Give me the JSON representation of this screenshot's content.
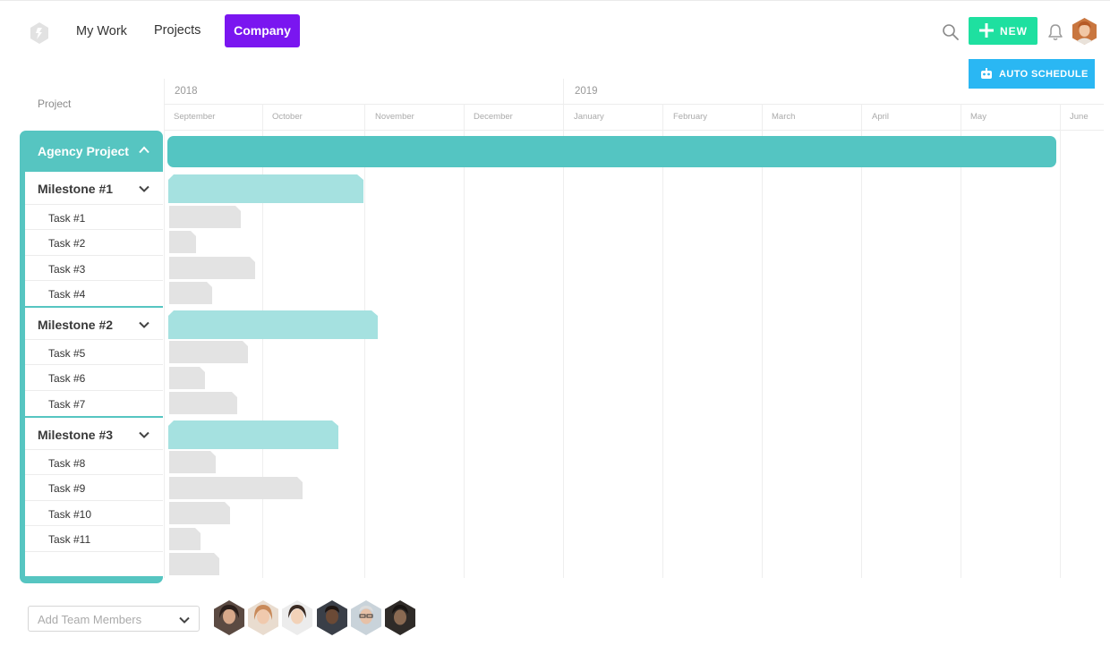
{
  "nav": {
    "my_work": "My Work",
    "projects": "Projects",
    "company": "Company",
    "new_label": "NEW",
    "accent_color": "#7a16f0",
    "new_color": "#1ee0a0"
  },
  "toolbar": {
    "auto_schedule": "AUTO SCHEDULE",
    "auto_schedule_color": "#2ab7f3"
  },
  "timeline": {
    "project_label": "Project",
    "years": [
      "2018",
      "2019"
    ],
    "months": [
      "September",
      "October",
      "November",
      "December",
      "January",
      "February",
      "March",
      "April",
      "May",
      "June"
    ]
  },
  "project": {
    "name": "Agency Project",
    "color": "#56c5c1",
    "milestones": [
      {
        "name": "Milestone #1",
        "tasks": [
          "Task #1",
          "Task #2",
          "Task #3",
          "Task #4"
        ]
      },
      {
        "name": "Milestone #2",
        "tasks": [
          "Task #5",
          "Task #6",
          "Task #7"
        ]
      },
      {
        "name": "Milestone #3",
        "tasks": [
          "Task #8",
          "Task #9",
          "Task #10",
          "Task #11"
        ]
      }
    ]
  },
  "footer": {
    "add_team_members_placeholder": "Add Team Members",
    "member_count": 6
  }
}
